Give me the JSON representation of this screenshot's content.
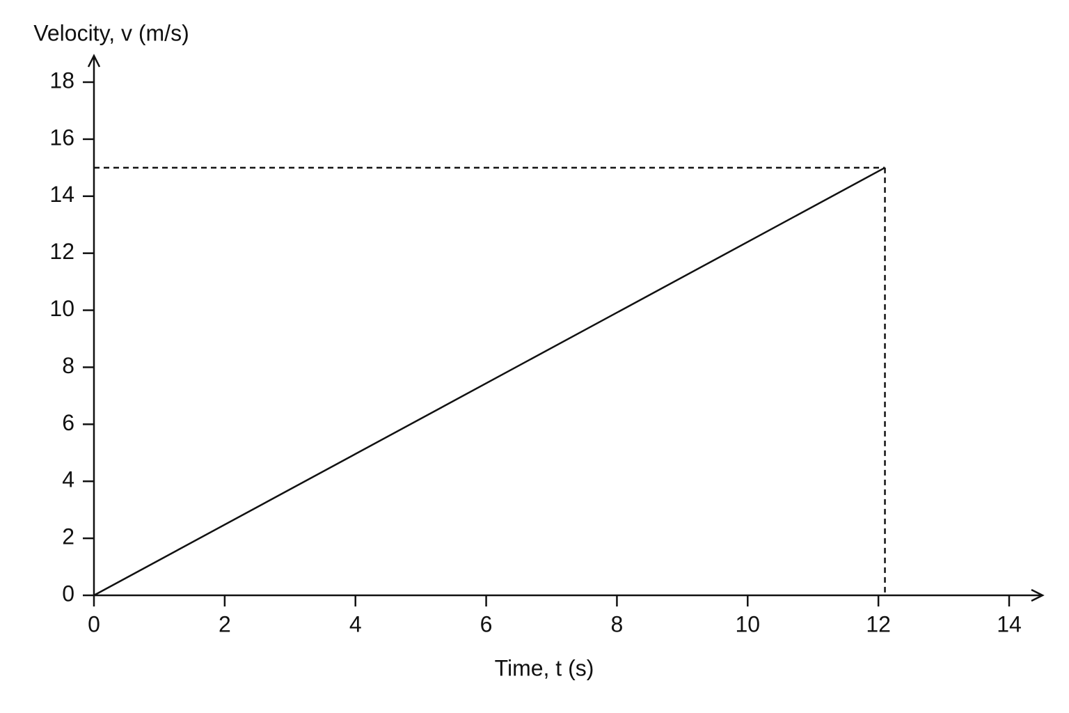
{
  "chart_data": {
    "type": "line",
    "x_label": "Time, t (s)",
    "y_label": "Velocity, v (m/s)",
    "x": [
      0,
      12.1
    ],
    "series": [
      {
        "values": [
          0,
          15
        ],
        "color": "#111111"
      }
    ],
    "xlim": [
      0,
      14
    ],
    "xticks": [
      0,
      2,
      4,
      6,
      8,
      10,
      12,
      14
    ],
    "ylim": [
      0,
      18
    ],
    "yticks": [
      0,
      2,
      4,
      6,
      8,
      10,
      12,
      14,
      16,
      18
    ],
    "grid": false
  }
}
